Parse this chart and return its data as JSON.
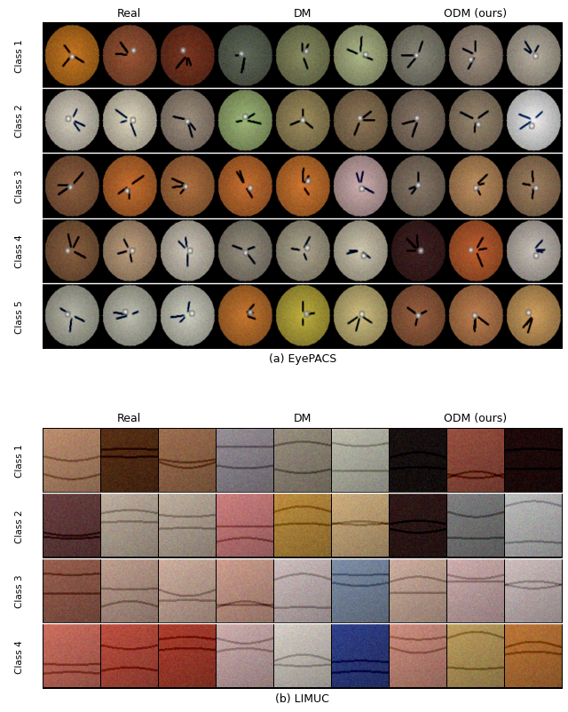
{
  "figure_width": 6.4,
  "figure_height": 8.03,
  "dpi": 100,
  "bg_color": "#ffffff",
  "panel_a_title": "(a) EyePACS",
  "panel_b_title": "(b) LIMUC",
  "col_headers_a": [
    "Real",
    "DM",
    "ODM (ours)"
  ],
  "col_headers_b": [
    "Real",
    "DM",
    "ODM (ours)"
  ],
  "row_labels_a": [
    "Class 1",
    "Class 2",
    "Class 3",
    "Class 4",
    "Class 5"
  ],
  "row_labels_b": [
    "Class 1",
    "Class 2",
    "Class 3",
    "Class 4"
  ],
  "header_fontsize": 9,
  "label_fontsize": 7.5,
  "caption_fontsize": 9,
  "eyepacs_colors": [
    [
      [
        "#c87820",
        "#9a5535",
        "#7a3520"
      ],
      [
        "#606858",
        "#888c60",
        "#b0b888"
      ],
      [
        "#8a8878",
        "#a09080",
        "#b8b0a0"
      ]
    ],
    [
      [
        "#d8d0c0",
        "#e0d8c0",
        "#a09080"
      ],
      [
        "#a0b878",
        "#a09060",
        "#907858"
      ],
      [
        "#8a7868",
        "#9a8870",
        "#f0f0f0"
      ]
    ],
    [
      [
        "#906040",
        "#c87030",
        "#b07040"
      ],
      [
        "#c87030",
        "#d07830",
        "#d0b0b0"
      ],
      [
        "#887868",
        "#c09060",
        "#a08060"
      ]
    ],
    [
      [
        "#8a6040",
        "#c0a080",
        "#d0c8b8"
      ],
      [
        "#989080",
        "#b0a890",
        "#d0c8b0"
      ],
      [
        "#402020",
        "#c06030",
        "#c8c0b8"
      ]
    ],
    [
      [
        "#b8b8a8",
        "#c0c0b0",
        "#d0d0c0"
      ],
      [
        "#c87830",
        "#c0b040",
        "#d0c080"
      ],
      [
        "#9a6040",
        "#c08050",
        "#d0a060"
      ]
    ]
  ],
  "limuc_colors": [
    [
      [
        "#c09070",
        "#5a3015",
        "#a07050"
      ],
      [
        "#989098",
        "#9a9080",
        "#c0c0b0"
      ],
      [
        "#181010",
        "#9a5040",
        "#200808"
      ]
    ],
    [
      [
        "#6a4040",
        "#c0b0a0",
        "#c0b0a0"
      ],
      [
        "#d08080",
        "#c09040",
        "#d0b080"
      ],
      [
        "#301818",
        "#808080",
        "#c0c0c0"
      ]
    ],
    [
      [
        "#9a6050",
        "#c0a090",
        "#d0b0a0"
      ],
      [
        "#d0a090",
        "#d0c0c0",
        "#8090a8"
      ],
      [
        "#d0b0a0",
        "#d0b0b0",
        "#d0c0c0"
      ]
    ],
    [
      [
        "#d07060",
        "#c05040",
        "#b04030"
      ],
      [
        "#d0b0b0",
        "#d8d0c8",
        "#30408a"
      ],
      [
        "#d09080",
        "#c0a060",
        "#c07838"
      ]
    ]
  ]
}
